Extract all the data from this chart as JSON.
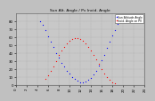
{
  "title": "Sun Alt. Angle / Pv Incid. Angle",
  "legend_blue": "Sun Altitude Angle",
  "legend_red": "Incid. Angle on PV",
  "bg_color": "#c0c0c0",
  "plot_bg": "#c8c8c8",
  "blue_color": "#0000ff",
  "red_color": "#ff0000",
  "ylim": [
    0,
    90
  ],
  "xlim": [
    0,
    24
  ],
  "ytick_labels": [
    "0",
    "10",
    "20",
    "30",
    "40",
    "50",
    "60",
    "70",
    "80"
  ],
  "yticks": [
    0,
    10,
    20,
    30,
    40,
    50,
    60,
    70,
    80
  ],
  "xticks": [
    0,
    2,
    4,
    6,
    8,
    10,
    12,
    14,
    16,
    18,
    20,
    22,
    24
  ],
  "blue_x": [
    4.5,
    5.0,
    5.5,
    6.0,
    6.5,
    7.0,
    7.5,
    8.0,
    8.5,
    9.0,
    9.5,
    10.0,
    10.5,
    11.0,
    11.5,
    12.0,
    12.5,
    13.0,
    13.5,
    14.0,
    14.5,
    15.0,
    15.5,
    16.0,
    16.5,
    17.0,
    17.5,
    18.0,
    18.5,
    19.0,
    19.5
  ],
  "blue_y": [
    80,
    75,
    68,
    61,
    54,
    47,
    40,
    34,
    28,
    23,
    18,
    14,
    10,
    7,
    5,
    3,
    3,
    4,
    6,
    9,
    13,
    18,
    24,
    31,
    38,
    46,
    54,
    62,
    69,
    76,
    82
  ],
  "red_x": [
    5.5,
    6.0,
    6.5,
    7.0,
    7.5,
    8.0,
    8.5,
    9.0,
    9.5,
    10.0,
    10.5,
    11.0,
    11.5,
    12.0,
    12.5,
    13.0,
    13.5,
    14.0,
    14.5,
    15.0,
    15.5,
    16.0,
    16.5,
    17.0,
    17.5,
    18.0,
    18.5
  ],
  "red_y": [
    8,
    12,
    17,
    23,
    30,
    37,
    43,
    48,
    52,
    55,
    57,
    58,
    58,
    57,
    55,
    52,
    48,
    43,
    38,
    32,
    26,
    20,
    14,
    10,
    6,
    3,
    2
  ]
}
